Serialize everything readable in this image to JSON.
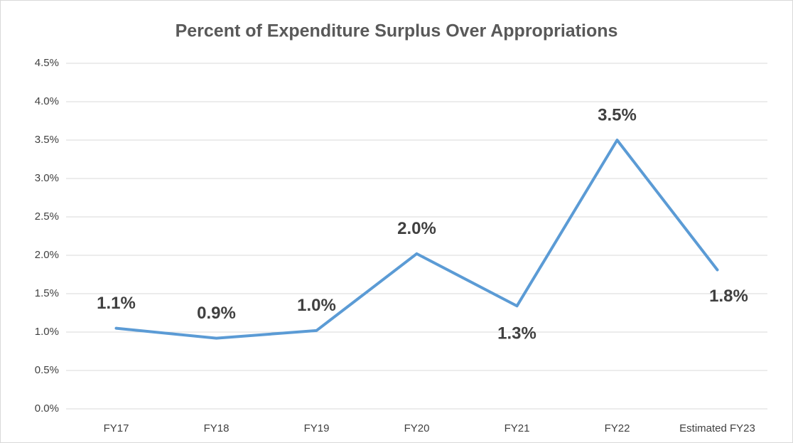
{
  "chart_data": {
    "type": "line",
    "title": "Percent of Expenditure Surplus Over Appropriations",
    "categories": [
      "FY17",
      "FY18",
      "FY19",
      "FY20",
      "FY21",
      "FY22",
      "Estimated FY23"
    ],
    "series": [
      {
        "name": "Percent of Expenditure Surplus Over Appropriations",
        "color": "#5b9bd5",
        "values": [
          1.05,
          0.92,
          1.02,
          2.02,
          1.34,
          3.5,
          1.81
        ],
        "value_labels": [
          "1.1%",
          "0.9%",
          "1.0%",
          "2.0%",
          "1.3%",
          "3.5%",
          "1.8%"
        ]
      }
    ],
    "ylim": [
      0,
      4.5
    ],
    "yticks": [
      {
        "value": 0,
        "label": "0.0%"
      },
      {
        "value": 0.5,
        "label": "0.5%"
      },
      {
        "value": 1,
        "label": "1.0%"
      },
      {
        "value": 1.5,
        "label": "1.5%"
      },
      {
        "value": 2,
        "label": "2.0%"
      },
      {
        "value": 2.5,
        "label": "2.5%"
      },
      {
        "value": 3,
        "label": "3.0%"
      },
      {
        "value": 3.5,
        "label": "3.5%"
      },
      {
        "value": 4,
        "label": "4.0%"
      },
      {
        "value": 4.5,
        "label": "4.5%"
      }
    ],
    "grid": true
  }
}
